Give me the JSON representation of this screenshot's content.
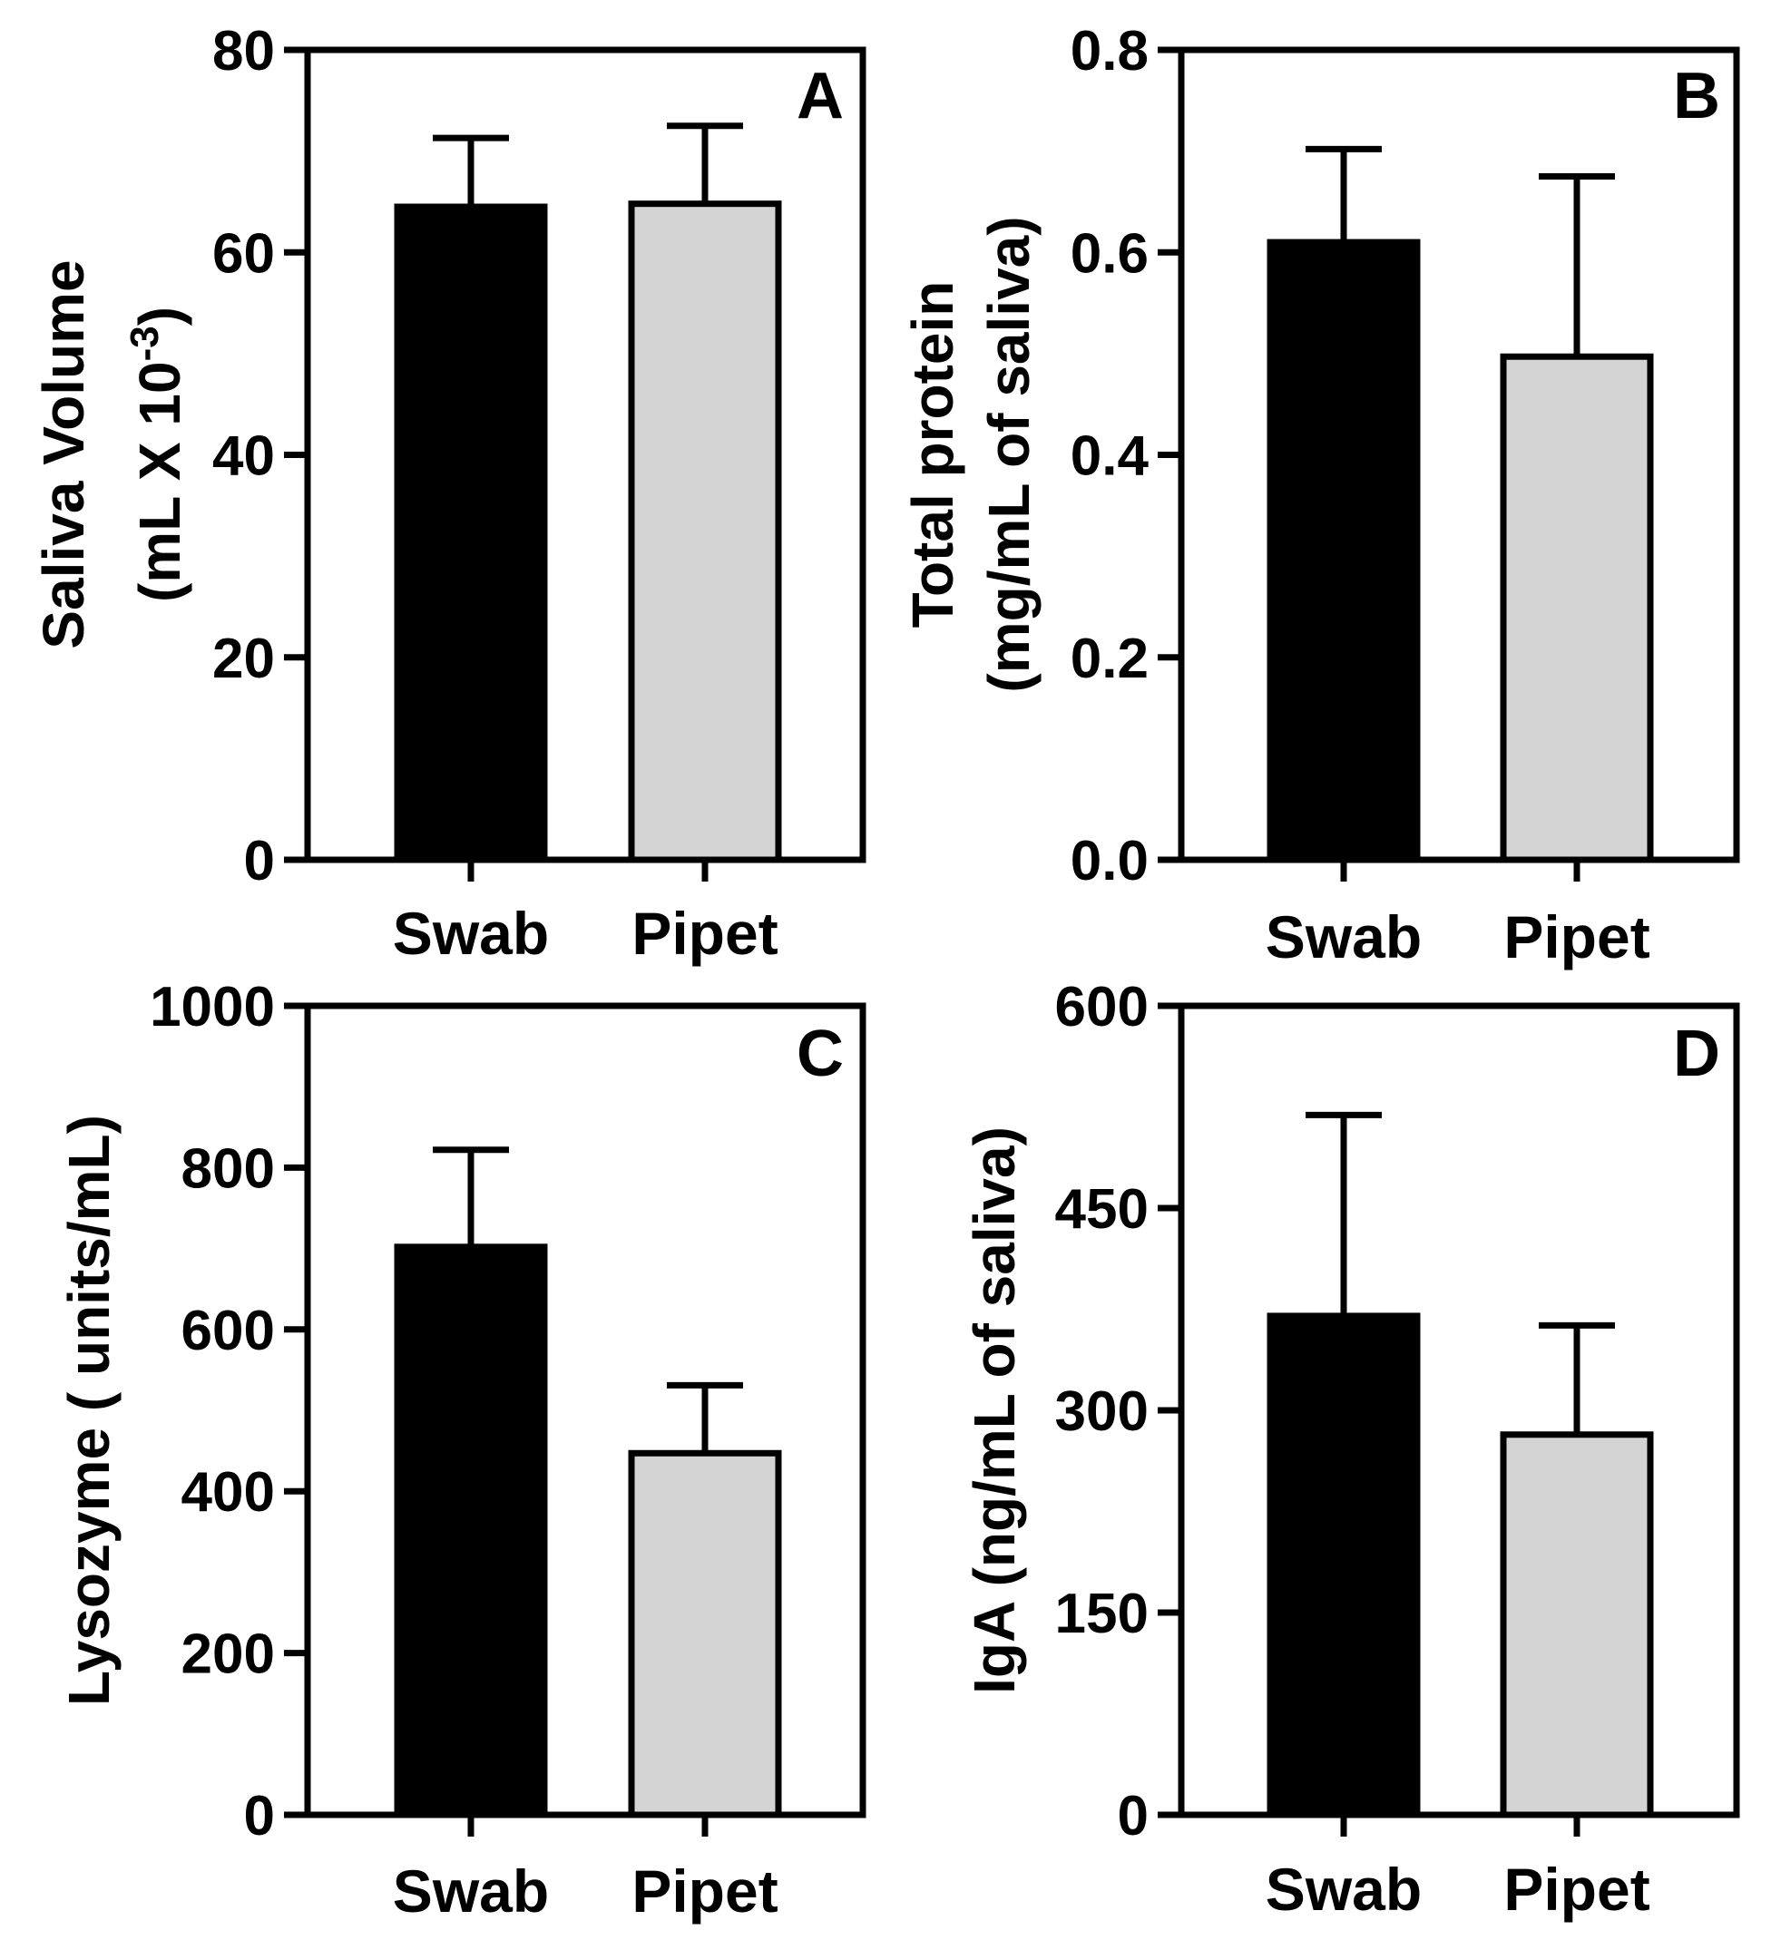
{
  "chart_data": [
    {
      "type": "bar",
      "panel": "A",
      "categories": [
        "Swab",
        "Pipet"
      ],
      "values": [
        64.5,
        64.8
      ],
      "errors": [
        6.8,
        7.7
      ],
      "colors": [
        "#000000",
        "#d4d4d4"
      ],
      "ylabel_lines": [
        "Saliva Volume",
        "(mL X 10",
        "-3",
        ")"
      ],
      "ylim": [
        0,
        80
      ],
      "yticks": [
        "0",
        "20",
        "40",
        "60",
        "80"
      ]
    },
    {
      "type": "bar",
      "panel": "B",
      "categories": [
        "Swab",
        "Pipet"
      ],
      "values": [
        0.61,
        0.497
      ],
      "errors": [
        0.092,
        0.178
      ],
      "colors": [
        "#000000",
        "#d4d4d4"
      ],
      "ylabel_lines": [
        "Total protein",
        "(mg/mL of saliva)"
      ],
      "ylim": [
        0,
        0.8
      ],
      "yticks": [
        "0.0",
        "0.2",
        "0.4",
        "0.6",
        "0.8"
      ]
    },
    {
      "type": "bar",
      "panel": "C",
      "categories": [
        "Swab",
        "Pipet"
      ],
      "values": [
        702,
        447
      ],
      "errors": [
        120,
        84
      ],
      "colors": [
        "#000000",
        "#d4d4d4"
      ],
      "ylabel_lines": [
        "Lysozyme ( units/mL)"
      ],
      "ylim": [
        0,
        1000
      ],
      "yticks": [
        "0",
        "200",
        "400",
        "600",
        "800",
        "1000"
      ]
    },
    {
      "type": "bar",
      "panel": "D",
      "categories": [
        "Swab",
        "Pipet"
      ],
      "values": [
        370,
        282
      ],
      "errors": [
        149,
        81
      ],
      "colors": [
        "#000000",
        "#d4d4d4"
      ],
      "ylabel_lines": [
        "IgA (ng/mL of saliva)"
      ],
      "ylim": [
        0,
        600
      ],
      "yticks": [
        "0",
        "150",
        "300",
        "450",
        "600"
      ]
    }
  ]
}
